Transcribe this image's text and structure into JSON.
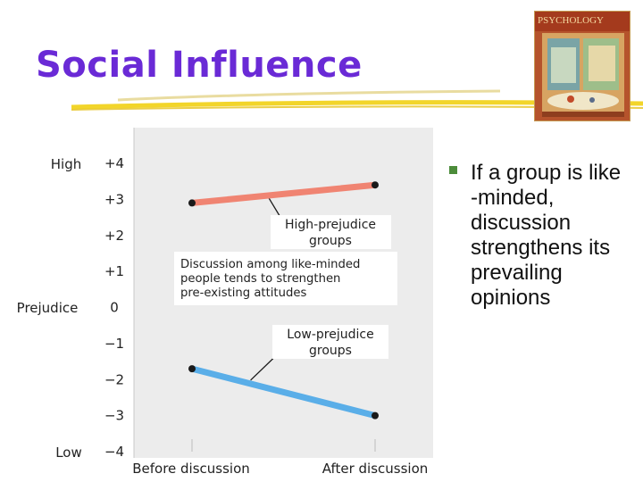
{
  "slide": {
    "title": "Social Influence",
    "bullet": "If a group is like\n-minded,\ndiscussion\nstrengthens its\nprevailing\nopinions",
    "book_cover_title": "PSYCHOLOGY"
  },
  "colors": {
    "title": "#6a2ad6",
    "high_series": "#f08472",
    "low_series": "#5aaee8",
    "bullet": "#4c8c3a",
    "plot_bg": "#ececec",
    "underline": "#f2d52a"
  },
  "chart_data": {
    "type": "line",
    "title": "",
    "xlabel": "",
    "ylabel": "Prejudice",
    "x": [
      "Before discussion",
      "After discussion"
    ],
    "ylim": [
      -4,
      4
    ],
    "yticks": [
      "+4",
      "+3",
      "+2",
      "+1",
      "0",
      "−1",
      "−2",
      "−3",
      "−4"
    ],
    "y_end_labels": {
      "top": "High",
      "bottom": "Low"
    },
    "grid": false,
    "series": [
      {
        "name": "High-prejudice groups",
        "values": [
          2.9,
          3.4
        ]
      },
      {
        "name": "Low-prejudice groups",
        "values": [
          -1.7,
          -3.0
        ]
      }
    ],
    "series_labels": [
      [
        "High-prejudice",
        "groups"
      ],
      [
        "Low-prejudice",
        "groups"
      ]
    ],
    "annotation": [
      "Discussion among like-minded",
      "people tends to strengthen",
      "pre-existing attitudes"
    ]
  }
}
